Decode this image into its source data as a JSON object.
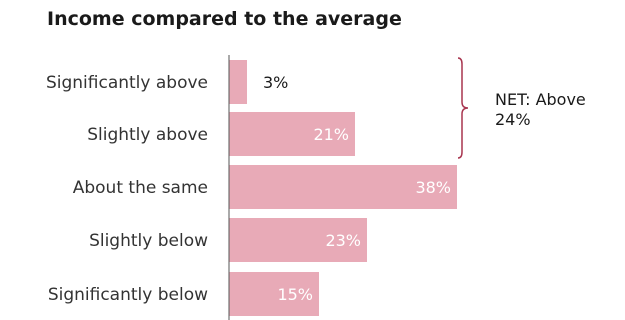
{
  "chart_data": {
    "type": "bar",
    "orientation": "horizontal",
    "title": "Income compared to the average",
    "categories": [
      "Significantly above",
      "Slightly above",
      "About the same",
      "Slightly below",
      "Significantly below"
    ],
    "values": [
      3,
      21,
      38,
      23,
      15
    ],
    "value_labels": [
      "3%",
      "21%",
      "38%",
      "23%",
      "15%"
    ],
    "xlim": [
      0,
      38
    ],
    "grid": false,
    "annotations": [
      {
        "text_lines": [
          "NET: Above",
          "24%"
        ],
        "spans_categories": [
          "Significantly above",
          "Slightly above"
        ]
      }
    ],
    "colors": {
      "bar": "#e8aab7",
      "bracket": "#a8354f",
      "label_inside": "#ffffff",
      "label_outside": "#1a1a1a",
      "axis": "#555555"
    }
  }
}
